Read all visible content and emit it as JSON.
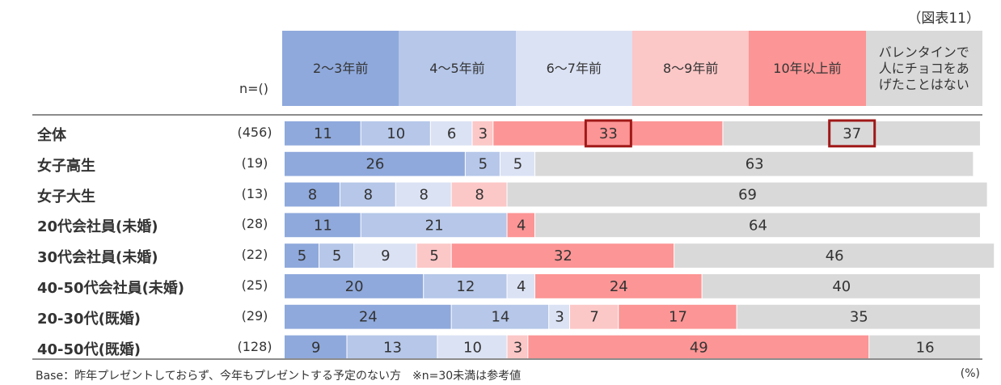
{
  "figure_label": "（図表11）",
  "n_header": "n=()",
  "footnote": "Base：昨年プレゼントしておらず、今年もプレゼントする予定のない方　※n=30未満は参考値",
  "unit_label": "(%)",
  "colors": {
    "c1": "#8fa9dc",
    "c2": "#b6c7e9",
    "c3": "#dbe2f4",
    "c4": "#fcc7c7",
    "c5": "#fc9595",
    "c6": "#d9d9d9",
    "highlight": "#a01818"
  },
  "chart_data": {
    "type": "bar",
    "stacked": true,
    "orientation": "horizontal",
    "xlim": [
      0,
      100
    ],
    "legend_position": "top",
    "categories": [
      "全体",
      "女子高生",
      "女子大生",
      "20代会社員(未婚)",
      "30代会社員(未婚)",
      "40-50代会社員(未婚)",
      "20-30代(既婚)",
      "40-50代(既婚)"
    ],
    "n": [
      "(456)",
      "(19)",
      "(13)",
      "(28)",
      "(22)",
      "(25)",
      "(29)",
      "(128)"
    ],
    "series": [
      {
        "name": "2～3年前",
        "values": [
          11,
          26,
          8,
          11,
          5,
          20,
          24,
          9
        ]
      },
      {
        "name": "4～5年前",
        "values": [
          10,
          5,
          8,
          21,
          5,
          12,
          14,
          13
        ]
      },
      {
        "name": "6～7年前",
        "values": [
          6,
          5,
          8,
          0,
          9,
          4,
          3,
          10
        ]
      },
      {
        "name": "8～9年前",
        "values": [
          3,
          0,
          8,
          0,
          5,
          0,
          7,
          3
        ]
      },
      {
        "name": "10年以上前",
        "values": [
          33,
          0,
          0,
          4,
          32,
          24,
          17,
          49
        ]
      },
      {
        "name": "バレンタインで人にチョコをあげたことはない",
        "values": [
          37,
          63,
          69,
          64,
          46,
          40,
          35,
          16
        ]
      }
    ],
    "legend_lines": [
      [
        "2～3年前"
      ],
      [
        "4～5年前"
      ],
      [
        "6～7年前"
      ],
      [
        "8～9年前"
      ],
      [
        "10年以上前"
      ],
      [
        "バレンタインで",
        "人にチョコをあ",
        "げたことはない"
      ]
    ],
    "highlighted": [
      {
        "row": 0,
        "series": 4
      },
      {
        "row": 0,
        "series": 5
      }
    ]
  }
}
